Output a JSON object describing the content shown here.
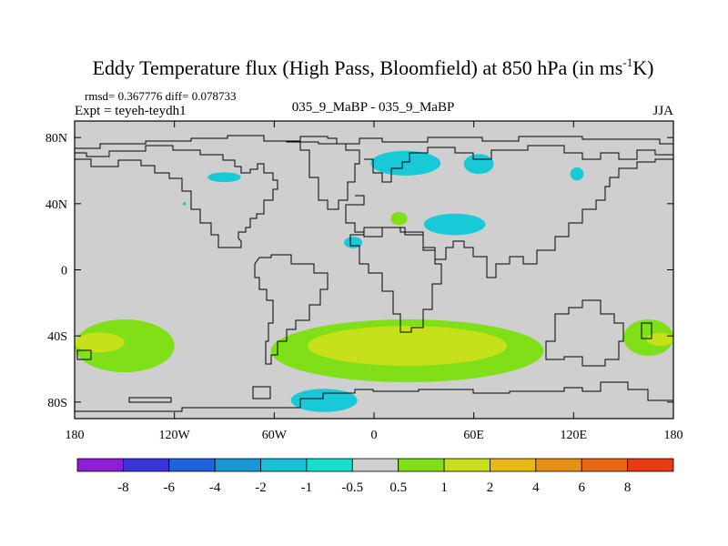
{
  "chart_data": {
    "type": "heatmap",
    "title": "Eddy Temperature flux (High Pass, Bloomfield) at 850 hPa (in ms",
    "title_sup": "-1",
    "title_tail": "K)",
    "stats": "rmsd= 0.367776 diff= 0.078733",
    "experiment": "Expt = teyeh-teydh1",
    "subtitle": "035_9_MaBP - 035_9_MaBP",
    "season": "JJA",
    "xlim": [
      -180,
      180
    ],
    "ylim": [
      -90,
      90
    ],
    "x_ticks": [
      {
        "value": -180,
        "label": "180"
      },
      {
        "value": -120,
        "label": "120W"
      },
      {
        "value": -60,
        "label": "60W"
      },
      {
        "value": 0,
        "label": "0"
      },
      {
        "value": 60,
        "label": "60E"
      },
      {
        "value": 120,
        "label": "120E"
      },
      {
        "value": 180,
        "label": "180"
      }
    ],
    "y_ticks": [
      {
        "value": 80,
        "label": "80N"
      },
      {
        "value": 40,
        "label": "40N"
      },
      {
        "value": 0,
        "label": "0"
      },
      {
        "value": -40,
        "label": "40S"
      },
      {
        "value": -80,
        "label": "80S"
      }
    ],
    "colorbar": {
      "labels": [
        "-8",
        "-6",
        "-4",
        "-2",
        "-1",
        "-0.5",
        "0.5",
        "1",
        "2",
        "4",
        "6",
        "8"
      ],
      "colors": [
        "#8c1ed6",
        "#3a35d8",
        "#1f63dc",
        "#1b97d8",
        "#18c2d6",
        "#15e0cc",
        "#cfcfcf",
        "#7fe017",
        "#c6e11a",
        "#e8b915",
        "#e89015",
        "#e86814",
        "#e83a14"
      ]
    },
    "features": [
      {
        "name": "southern-ocean-band-west",
        "value": 1,
        "lon": [
          -180,
          -120
        ],
        "lat": [
          -62,
          -30
        ]
      },
      {
        "name": "southern-ocean-band-west-core",
        "value": 2,
        "lon": [
          -180,
          -150
        ],
        "lat": [
          -50,
          -38
        ]
      },
      {
        "name": "southern-ocean-band-atlantic-indian",
        "value": 1,
        "lon": [
          -62,
          102
        ],
        "lat": [
          -68,
          -30
        ]
      },
      {
        "name": "southern-ocean-core-atlantic-indian",
        "value": 2,
        "lon": [
          -40,
          80
        ],
        "lat": [
          -58,
          -34
        ]
      },
      {
        "name": "southern-ocean-band-east",
        "value": 1,
        "lon": [
          150,
          180
        ],
        "lat": [
          -52,
          -30
        ]
      },
      {
        "name": "southern-ocean-core-east",
        "value": 2,
        "lon": [
          164,
          180
        ],
        "lat": [
          -46,
          -38
        ]
      },
      {
        "name": "north-atlantic-negative",
        "value": -1,
        "lon": [
          -100,
          -80
        ],
        "lat": [
          53,
          59
        ]
      },
      {
        "name": "greenland-sea-negative",
        "value": -1,
        "lon": [
          -2,
          40
        ],
        "lat": [
          57,
          72
        ]
      },
      {
        "name": "siberia-negative",
        "value": -1,
        "lon": [
          30,
          67
        ],
        "lat": [
          21,
          34
        ]
      },
      {
        "name": "central-asia-positive",
        "value": 1,
        "lon": [
          10,
          20
        ],
        "lat": [
          27,
          35
        ]
      },
      {
        "name": "caspian-negative",
        "value": -1,
        "lon": [
          -18,
          -7
        ],
        "lat": [
          13,
          20
        ]
      },
      {
        "name": "east-asia-negative",
        "value": -1,
        "lon": [
          118,
          126
        ],
        "lat": [
          54,
          62
        ]
      },
      {
        "name": "arctic-negative",
        "value": -1,
        "lon": [
          54,
          72
        ],
        "lat": [
          58,
          70
        ]
      },
      {
        "name": "antarctic-negative",
        "value": -1,
        "lon": [
          -50,
          -10
        ],
        "lat": [
          -86,
          -72
        ]
      },
      {
        "name": "tiny-negative",
        "value": -1,
        "lon": [
          -115,
          -113
        ],
        "lat": [
          39,
          41
        ]
      }
    ]
  }
}
